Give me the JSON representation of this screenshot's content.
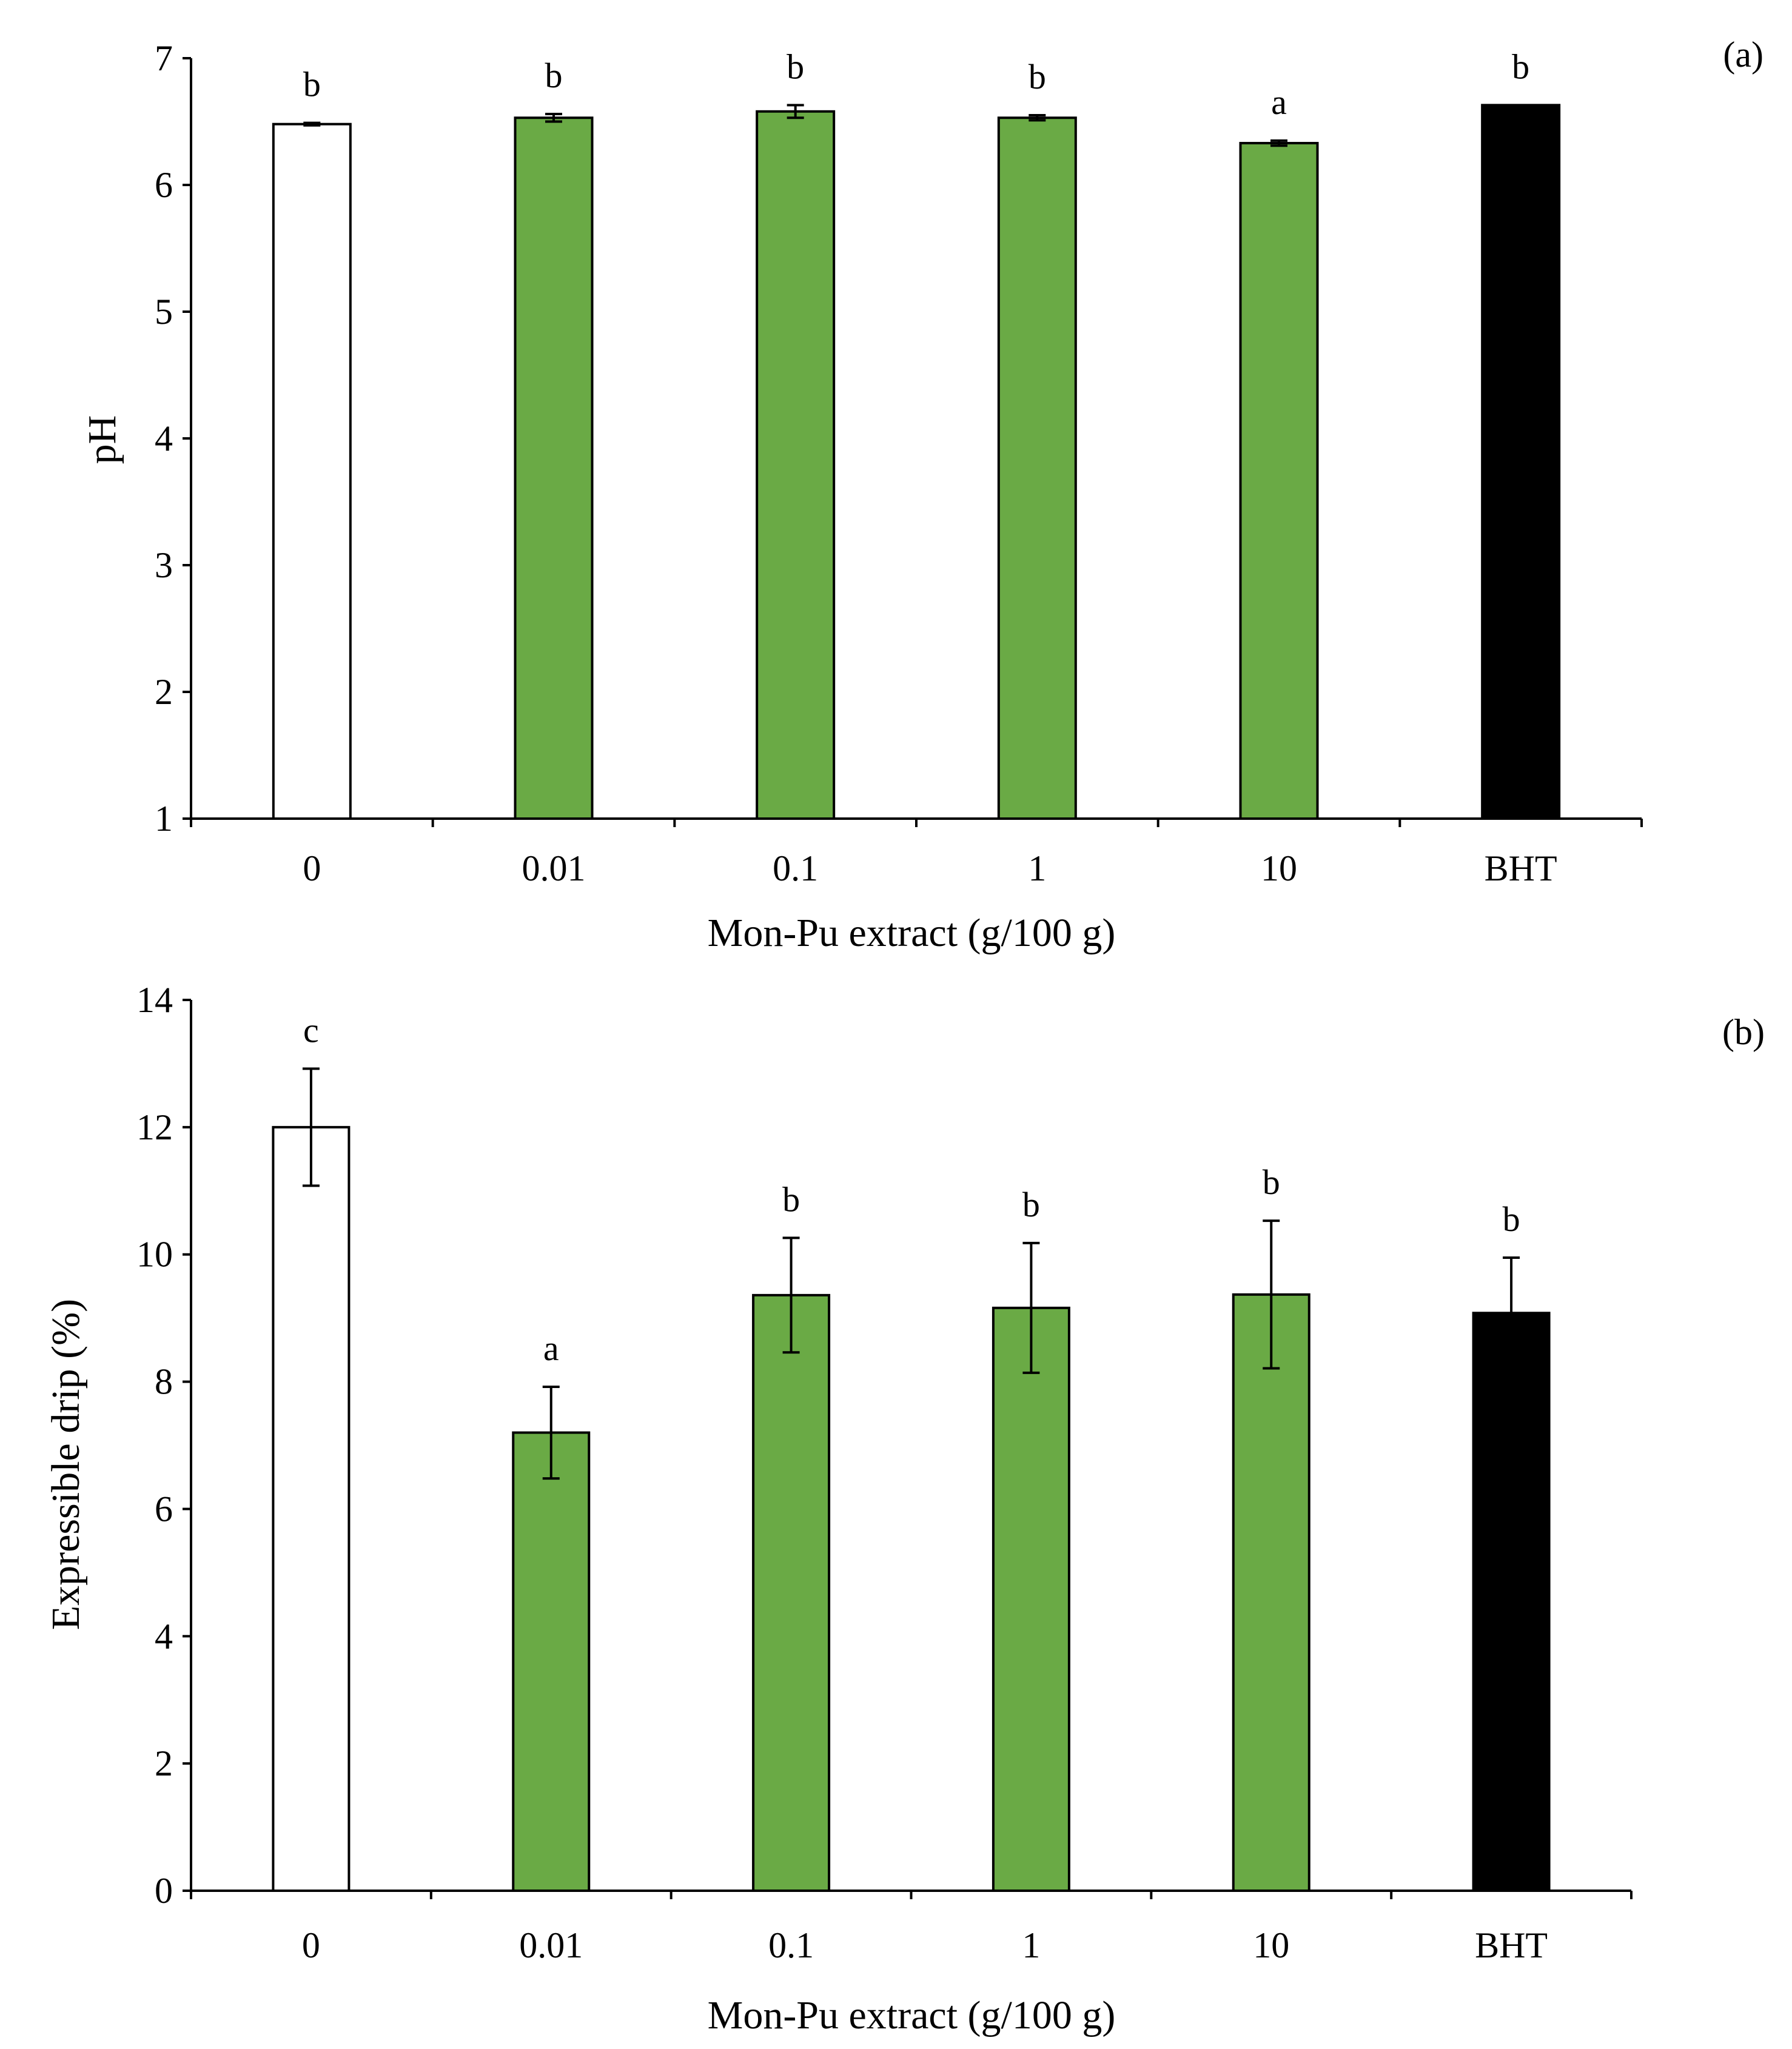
{
  "chart_data": [
    {
      "type": "bar",
      "panel_label": "(a)",
      "xlabel": "Mon-Pu extract (g/100 g)",
      "ylabel": "pH",
      "ylim": [
        1,
        7
      ],
      "yticks": [
        "1",
        "2",
        "3",
        "4",
        "5",
        "6",
        "7"
      ],
      "categories": [
        "0",
        "0.01",
        "0.1",
        "1",
        "10",
        "BHT"
      ],
      "values": [
        6.48,
        6.53,
        6.58,
        6.53,
        6.33,
        6.63
      ],
      "errors": [
        0.01,
        0.03,
        0.05,
        0.02,
        0.02,
        0.0
      ],
      "significance": [
        "b",
        "b",
        "b",
        "b",
        "a",
        "b"
      ],
      "bar_colors": [
        "#ffffff",
        "#6aaa45",
        "#6aaa45",
        "#6aaa45",
        "#6aaa45",
        "#000000"
      ],
      "grid": false
    },
    {
      "type": "bar",
      "panel_label": "(b)",
      "xlabel": "Mon-Pu extract (g/100 g)",
      "ylabel": "Expressible drip (%)",
      "ylim": [
        0,
        14
      ],
      "yticks": [
        "0",
        "2",
        "4",
        "6",
        "8",
        "10",
        "12",
        "14"
      ],
      "categories": [
        "0",
        "0.01",
        "0.1",
        "1",
        "10",
        "BHT"
      ],
      "values": [
        12.0,
        7.2,
        9.36,
        9.16,
        9.37,
        9.08
      ],
      "errors": [
        0.92,
        0.72,
        0.9,
        1.02,
        1.16,
        0.87
      ],
      "significance": [
        "c",
        "a",
        "b",
        "b",
        "b",
        "b"
      ],
      "bar_colors": [
        "#ffffff",
        "#6aaa45",
        "#6aaa45",
        "#6aaa45",
        "#6aaa45",
        "#000000"
      ],
      "grid": false
    }
  ]
}
